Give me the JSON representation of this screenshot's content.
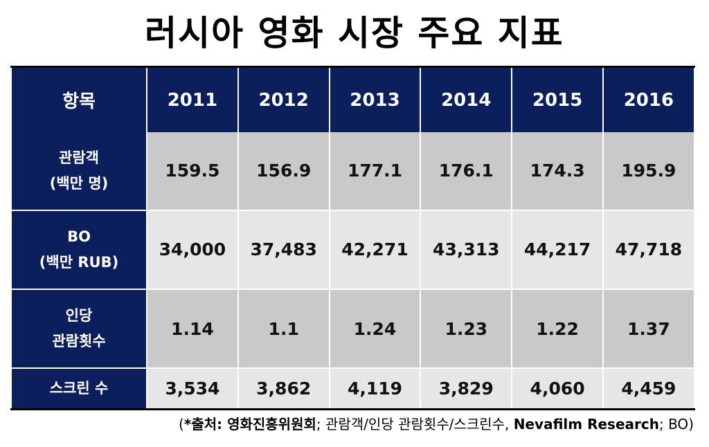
{
  "title": "러시아 영화 시장 주요 지표",
  "table": {
    "header": [
      "항목",
      "2011",
      "2012",
      "2013",
      "2014",
      "2015",
      "2016"
    ],
    "rows": [
      {
        "label_lines": [
          "관람객",
          "(백만 명)"
        ],
        "values": [
          "159.5",
          "156.9",
          "177.1",
          "176.1",
          "174.3",
          "195.9"
        ]
      },
      {
        "label_lines": [
          "BO",
          "(백만 RUB)"
        ],
        "values": [
          "34,000",
          "37,483",
          "42,271",
          "43,313",
          "44,217",
          "47,718"
        ]
      },
      {
        "label_lines": [
          "인당",
          "관람횟수"
        ],
        "values": [
          "1.14",
          "1.1",
          "1.24",
          "1.23",
          "1.22",
          "1.37"
        ]
      },
      {
        "label_lines": [
          "스크린 수"
        ],
        "values": [
          "3,534",
          "3,862",
          "4,119",
          "3,829",
          "4,060",
          "4,459"
        ]
      }
    ]
  },
  "footnote": {
    "open": "(",
    "source1_label": "*출처: 영화진흥위원회",
    "source1_items": "; 관람객/인당 관람횟수/스크린수, ",
    "source2_label": "Nevafilm Research",
    "source2_items": "; BO",
    "close": ")"
  },
  "colors": {
    "header_bg": "#0b1f5c",
    "row_dark": "#c9c9c9",
    "row_light": "#e6e6e6"
  }
}
